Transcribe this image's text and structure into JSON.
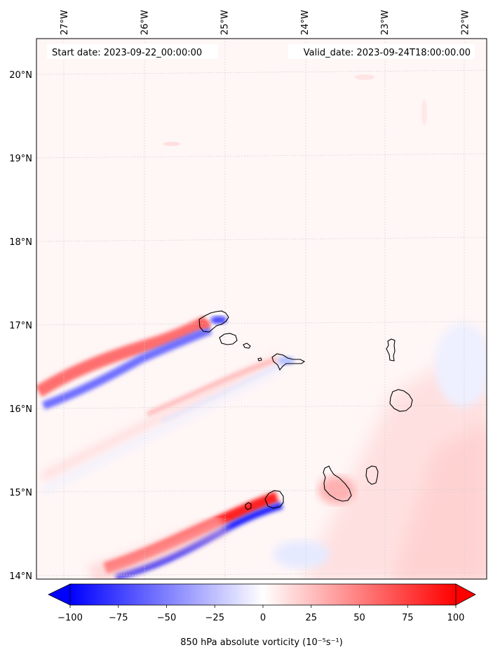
{
  "chart_data": {
    "type": "heatmap",
    "title": "",
    "start_label": "Start date: 2023-09-22_00:00:00",
    "valid_label": "Valid_date: 2023-09-24T18:00:00.00",
    "variable": "850 hPa absolute vorticity",
    "units_label": "850 hPa absolute vorticity (10⁻⁵s⁻¹)",
    "lon_ticks": [
      "27°W",
      "26°W",
      "25°W",
      "24°W",
      "23°W",
      "22°W"
    ],
    "lon_values": [
      -27,
      -26,
      -25,
      -24,
      -23,
      -22
    ],
    "lat_ticks": [
      "20°N",
      "19°N",
      "18°N",
      "17°N",
      "16°N",
      "15°N",
      "14°N"
    ],
    "lat_values": [
      20,
      19,
      18,
      17,
      16,
      15,
      14
    ],
    "lon_range": [
      -27.35,
      -21.7
    ],
    "lat_range": [
      13.95,
      20.42
    ],
    "colorbar": {
      "range": [
        -100,
        100
      ],
      "ticks": [
        -100,
        -75,
        -50,
        -25,
        0,
        25,
        50,
        75,
        100
      ],
      "tick_labels": [
        "−100",
        "−75",
        "−50",
        "−25",
        "0",
        "25",
        "50",
        "75",
        "100"
      ],
      "low_color": "#0000ff",
      "mid_color": "#ffffff",
      "high_color": "#ff0000"
    },
    "features": [
      {
        "name": "santo-antao-wake",
        "lon_start": -27.3,
        "lat_start": 16.1,
        "lon_end": -25.1,
        "lat_end": 17.0,
        "peak_positive": 60,
        "peak_negative": -60
      },
      {
        "name": "fogo-wake",
        "lon_start": -26.1,
        "lat_start": 14.05,
        "lon_end": -24.3,
        "lat_end": 14.85,
        "peak_positive": 100,
        "peak_negative": -100
      },
      {
        "name": "sao-nicolau-wake",
        "lon_start": -27.3,
        "lat_start": 15.1,
        "lon_end": -24.4,
        "lat_end": 16.6,
        "peak_positive": 20,
        "peak_negative": -10
      }
    ],
    "islands": [
      "Santo Antão",
      "São Vicente",
      "Santa Luzia",
      "São Nicolau",
      "Sal",
      "Boa Vista",
      "Maio",
      "Santiago",
      "Fogo",
      "Brava"
    ]
  }
}
